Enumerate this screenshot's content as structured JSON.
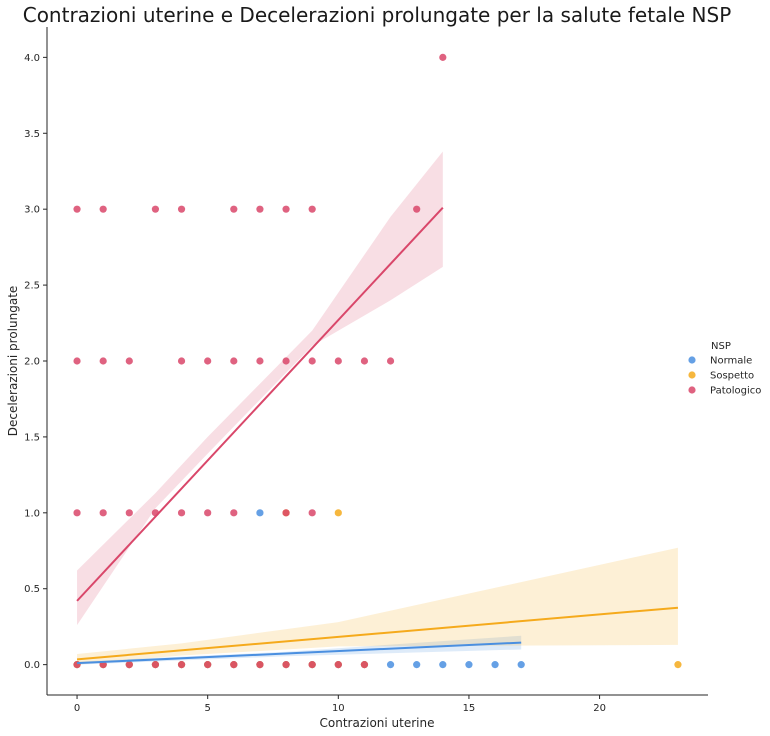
{
  "chart_data": {
    "type": "scatter",
    "title": "Contrazioni uterine e Decelerazioni prolungate per la salute fetale NSP",
    "xlabel": "Contrazioni uterine",
    "ylabel": "Decelerazioni prolungate",
    "xlim": [
      -1.15,
      24.15
    ],
    "ylim": [
      -0.2,
      4.2
    ],
    "xticks": [
      0,
      5,
      10,
      15,
      20
    ],
    "yticks": [
      0.0,
      0.5,
      1.0,
      1.5,
      2.0,
      2.5,
      3.0,
      3.5,
      4.0
    ],
    "grid": false,
    "legend": {
      "title": "NSP",
      "placement": "right"
    },
    "series": [
      {
        "name": "Normale",
        "color": "#4a8fe0",
        "points": [
          [
            0,
            0
          ],
          [
            1,
            0
          ],
          [
            2,
            0
          ],
          [
            3,
            0
          ],
          [
            4,
            0
          ],
          [
            5,
            0
          ],
          [
            6,
            0
          ],
          [
            7,
            0
          ],
          [
            8,
            0
          ],
          [
            9,
            0
          ],
          [
            10,
            0
          ],
          [
            11,
            0
          ],
          [
            12,
            0
          ],
          [
            13,
            0
          ],
          [
            14,
            0
          ],
          [
            15,
            0
          ],
          [
            16,
            0
          ],
          [
            17,
            0
          ],
          [
            7,
            1
          ]
        ],
        "fit": {
          "x0": 0,
          "y0": 0.01,
          "x1": 17,
          "y1": 0.145
        },
        "ci": [
          [
            0,
            0.0,
            0.02
          ],
          [
            8,
            0.055,
            0.085
          ],
          [
            17,
            0.1,
            0.19
          ]
        ]
      },
      {
        "name": "Sospetto",
        "color": "#f5aa1c",
        "points": [
          [
            0,
            0
          ],
          [
            1,
            0
          ],
          [
            2,
            0
          ],
          [
            3,
            0
          ],
          [
            4,
            0
          ],
          [
            5,
            0
          ],
          [
            6,
            0
          ],
          [
            7,
            0
          ],
          [
            8,
            0
          ],
          [
            9,
            0
          ],
          [
            10,
            0
          ],
          [
            11,
            0
          ],
          [
            23,
            0
          ],
          [
            8,
            1
          ],
          [
            10,
            1
          ]
        ],
        "fit": {
          "x0": 0,
          "y0": 0.035,
          "x1": 23,
          "y1": 0.375
        },
        "ci": [
          [
            0,
            0.0,
            0.07
          ],
          [
            4,
            0.06,
            0.14
          ],
          [
            10,
            0.12,
            0.28
          ],
          [
            23,
            0.13,
            0.77
          ]
        ]
      },
      {
        "name": "Patologico",
        "color": "#d9476a",
        "points": [
          [
            0,
            0
          ],
          [
            1,
            0
          ],
          [
            2,
            0
          ],
          [
            3,
            0
          ],
          [
            4,
            0
          ],
          [
            5,
            0
          ],
          [
            6,
            0
          ],
          [
            7,
            0
          ],
          [
            8,
            0
          ],
          [
            9,
            0
          ],
          [
            10,
            0
          ],
          [
            11,
            0
          ],
          [
            0,
            1
          ],
          [
            1,
            1
          ],
          [
            2,
            1
          ],
          [
            3,
            1
          ],
          [
            4,
            1
          ],
          [
            5,
            1
          ],
          [
            6,
            1
          ],
          [
            8,
            1
          ],
          [
            9,
            1
          ],
          [
            0,
            2
          ],
          [
            1,
            2
          ],
          [
            2,
            2
          ],
          [
            4,
            2
          ],
          [
            5,
            2
          ],
          [
            6,
            2
          ],
          [
            7,
            2
          ],
          [
            8,
            2
          ],
          [
            9,
            2
          ],
          [
            10,
            2
          ],
          [
            11,
            2
          ],
          [
            12,
            2
          ],
          [
            0,
            3
          ],
          [
            1,
            3
          ],
          [
            3,
            3
          ],
          [
            4,
            3
          ],
          [
            6,
            3
          ],
          [
            7,
            3
          ],
          [
            8,
            3
          ],
          [
            9,
            3
          ],
          [
            13,
            3
          ],
          [
            14,
            4
          ]
        ],
        "fit": {
          "x0": 0,
          "y0": 0.42,
          "x1": 14,
          "y1": 3.01
        },
        "ci": [
          [
            0,
            0.26,
            0.62
          ],
          [
            3,
            1.03,
            1.13
          ],
          [
            5,
            1.39,
            1.5
          ],
          [
            9,
            2.1,
            2.2
          ],
          [
            12,
            2.4,
            2.95
          ],
          [
            14,
            2.62,
            3.38
          ]
        ]
      }
    ]
  }
}
